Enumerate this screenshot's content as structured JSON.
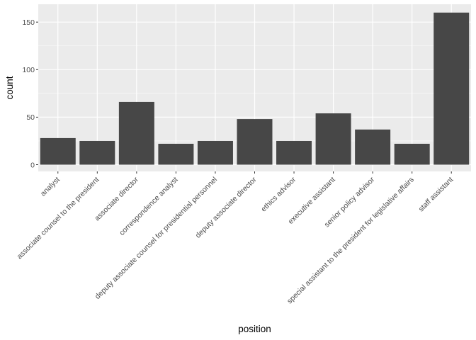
{
  "colors": {
    "panel_background": "#ebebeb",
    "gridline_major": "#ffffff",
    "bar_fill": "#474747",
    "tick_text": "#4d4d4d",
    "axis_text": "#000000"
  },
  "chart_data": {
    "type": "bar",
    "xlabel": "position",
    "ylabel": "count",
    "categories": [
      "analyst",
      "associate counsel to the president",
      "associate director",
      "correspondence analyst",
      "deputy associate counsel for presidential personnel",
      "deputy associate director",
      "ethics advisor",
      "executive assistant",
      "senior policy advisor",
      "special assistant to the president for legislative affairs",
      "staff assistant"
    ],
    "values": [
      28,
      25,
      66,
      22,
      25,
      48,
      25,
      54,
      37,
      22,
      160
    ],
    "ylim": [
      0,
      170
    ],
    "yticks": [
      0,
      50,
      100,
      150
    ],
    "grid": true,
    "legend": "none"
  }
}
